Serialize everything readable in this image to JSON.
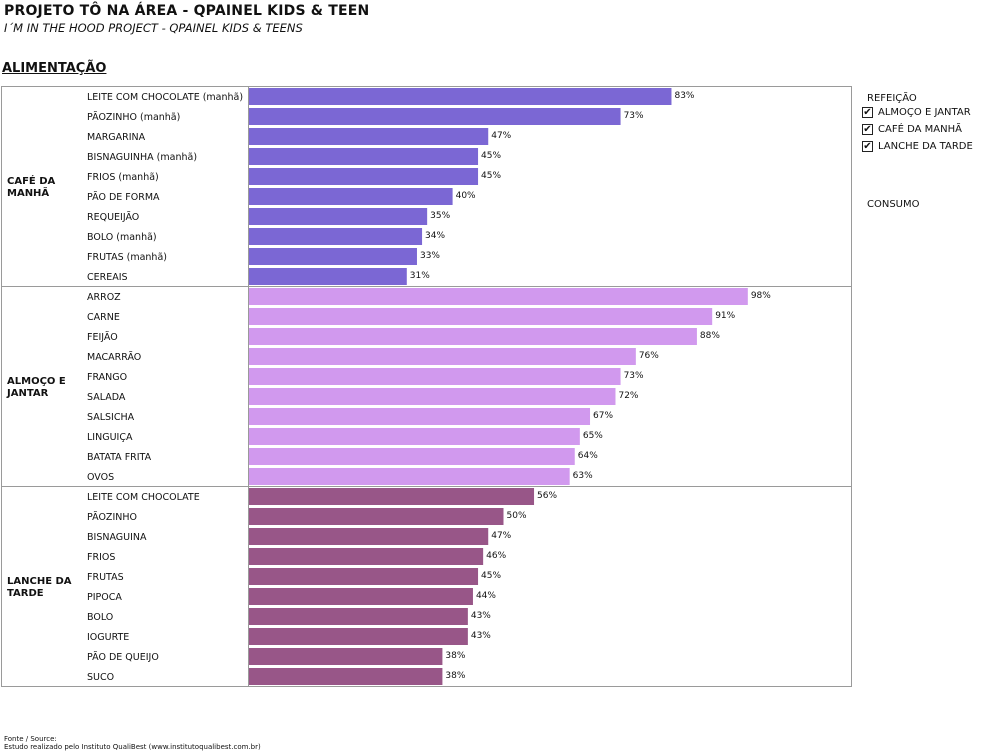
{
  "header": {
    "title": "PROJETO TÔ NA ÁREA - QPAINEL KIDS & TEEN",
    "subtitle": "I´M IN THE HOOD PROJECT  - QPAINEL KIDS & TEENS",
    "section": "ALIMENTAÇÃO"
  },
  "legend": {
    "title": "REFEIÇÃO",
    "items": [
      {
        "label": "ALMOÇO E JANTAR",
        "checked": true,
        "mark": "✔"
      },
      {
        "label": "CAFÉ DA MANHÃ",
        "checked": true,
        "mark": "✔"
      },
      {
        "label": "LANCHE DA TARDE",
        "checked": true,
        "mark": "✔"
      }
    ],
    "measure": "CONSUMO"
  },
  "footer": {
    "line1": "Fonte / Source:",
    "line2": "Estudo realizado pelo Instituto QualiBest (www.institutoqualibest.com.br)"
  },
  "chart_data": {
    "type": "bar",
    "orientation": "horizontal",
    "xlim": [
      0,
      100
    ],
    "value_suffix": "%",
    "groups": [
      {
        "name": "CAFÉ DA MANHÃ",
        "color": "#7b67d4",
        "categories": [
          "LEITE COM CHOCOLATE (manhã)",
          "PÃOZINHO (manhã)",
          "MARGARINA",
          "BISNAGUINHA (manhã)",
          "FRIOS (manhã)",
          "PÃO DE FORMA",
          "REQUEIJÃO",
          "BOLO (manhã)",
          "FRUTAS (manhã)",
          "CEREAIS"
        ],
        "values": [
          83,
          73,
          47,
          45,
          45,
          40,
          35,
          34,
          33,
          31
        ]
      },
      {
        "name": "ALMOÇO E JANTAR",
        "color": "#d199ee",
        "categories": [
          "ARROZ",
          "CARNE",
          "FEIJÃO",
          "MACARRÃO",
          "FRANGO",
          "SALADA",
          "SALSICHA",
          "LINGUIÇA",
          "BATATA FRITA",
          "OVOS"
        ],
        "values": [
          98,
          91,
          88,
          76,
          73,
          72,
          67,
          65,
          64,
          63
        ]
      },
      {
        "name": "LANCHE DA TARDE",
        "color": "#985688",
        "categories": [
          "LEITE COM CHOCOLATE",
          "PÃOZINHO",
          "BISNAGUINA",
          "FRIOS",
          "FRUTAS",
          "PIPOCA",
          "BOLO",
          "IOGURTE",
          "PÃO DE QUEIJO",
          "SUCO"
        ],
        "values": [
          56,
          50,
          47,
          46,
          45,
          44,
          43,
          43,
          38,
          38
        ]
      }
    ]
  }
}
